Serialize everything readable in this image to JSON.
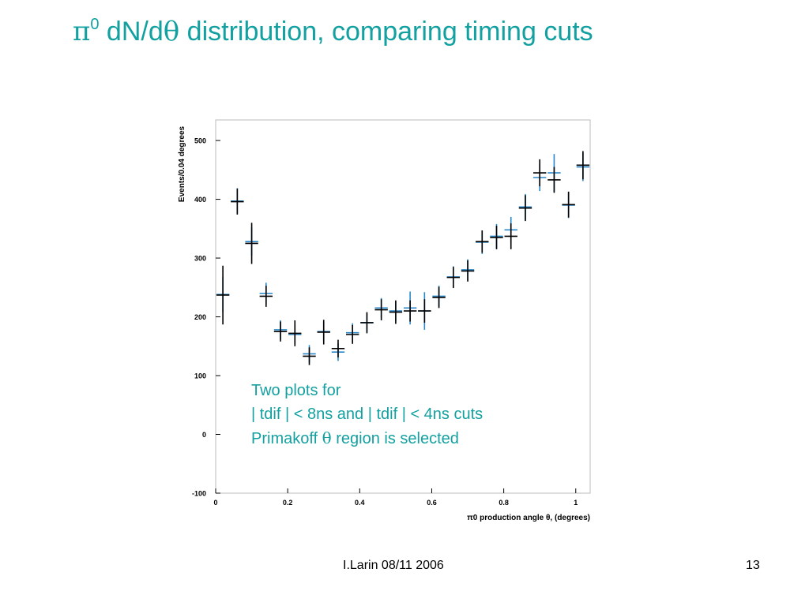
{
  "title": {
    "pi": "π",
    "sup": "0",
    "part1": " dN/d",
    "theta": "θ",
    "part2": " distribution, comparing timing cuts"
  },
  "note": {
    "line1": "Two plots for",
    "line2": "| tdif | < 8ns  and | tdif | < 4ns cuts",
    "line3_a": "Primakoff ",
    "line3_theta": "θ",
    "line3_b": " region is selected"
  },
  "footer": {
    "author_date": "I.Larin 08/11 2006",
    "page": "13"
  },
  "chart_data": {
    "type": "scatter",
    "ylabel": "Events/0.04 degrees",
    "xlabel": "π0 production angle θ, (degrees)",
    "xlim": [
      0,
      1.04
    ],
    "ylim": [
      -100,
      535
    ],
    "x_ticks": [
      0,
      0.2,
      0.4,
      0.6,
      0.8,
      1
    ],
    "x_tick_labels": [
      "0",
      "0.2",
      "0.4",
      "0.6",
      "0.8",
      "1"
    ],
    "y_ticks": [
      -100,
      0,
      100,
      200,
      300,
      400,
      500
    ],
    "y_tick_labels": [
      "-100",
      "0",
      "100",
      "200",
      "300",
      "400",
      "500"
    ],
    "bin_half_width": 0.02,
    "x": [
      0.02,
      0.06,
      0.1,
      0.14,
      0.18,
      0.22,
      0.26,
      0.3,
      0.34,
      0.38,
      0.42,
      0.46,
      0.5,
      0.54,
      0.58,
      0.62,
      0.66,
      0.7,
      0.74,
      0.78,
      0.82,
      0.86,
      0.9,
      0.94,
      0.98,
      1.02
    ],
    "series": [
      {
        "color": "#2a88c8",
        "values": [
          238,
          397,
          328,
          240,
          178,
          170,
          137,
          175,
          140,
          173,
          190,
          215,
          210,
          215,
          210,
          235,
          268,
          280,
          327,
          337,
          348,
          387,
          437,
          445,
          390,
          455
        ],
        "errors": [
          30,
          22,
          24,
          18,
          16,
          16,
          15,
          16,
          15,
          16,
          16,
          17,
          17,
          28,
          32,
          18,
          18,
          18,
          20,
          21,
          22,
          22,
          23,
          32,
          22,
          24
        ]
      },
      {
        "color": "#000000",
        "values": [
          237,
          396,
          325,
          235,
          175,
          172,
          133,
          174,
          146,
          170,
          190,
          212,
          208,
          210,
          210,
          233,
          267,
          278,
          328,
          335,
          337,
          385,
          445,
          433,
          391,
          458
        ],
        "errors": [
          50,
          22,
          35,
          18,
          17,
          22,
          15,
          21,
          15,
          16,
          18,
          18,
          20,
          18,
          20,
          18,
          18,
          18,
          19,
          20,
          22,
          22,
          23,
          22,
          22,
          24
        ]
      }
    ]
  }
}
